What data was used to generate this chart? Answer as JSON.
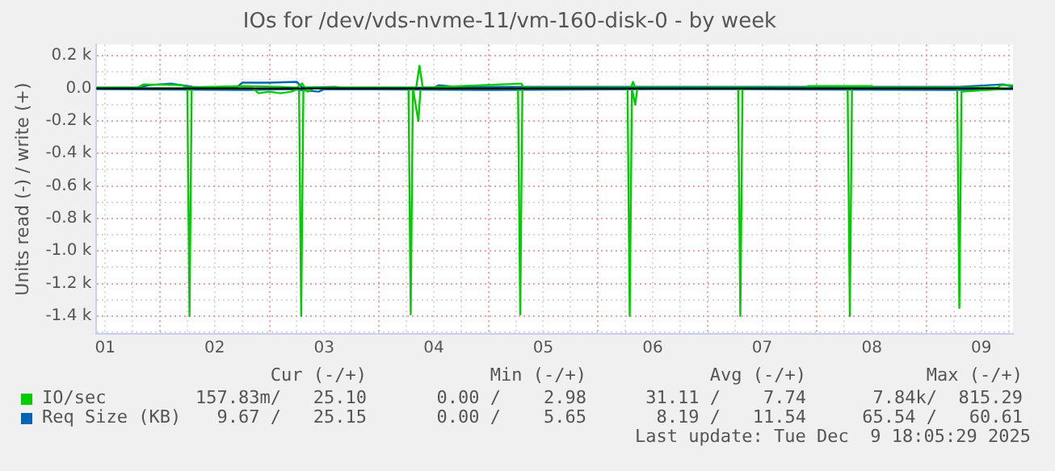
{
  "chart_data": {
    "type": "line",
    "title": "IOs for /dev/vds-nvme-11/vm-160-disk-0 - by week",
    "ylabel": "Units read (-) / write (+)",
    "xlim": [
      1.42,
      9.79
    ],
    "xticks": [
      {
        "value": 1.5,
        "label": "01"
      },
      {
        "value": 1.75,
        "label": null
      },
      {
        "value": 2,
        "label": null
      },
      {
        "value": 2.25,
        "label": null
      },
      {
        "value": 2.5,
        "label": "02"
      },
      {
        "value": 2.75,
        "label": null
      },
      {
        "value": 3,
        "label": null
      },
      {
        "value": 3.25,
        "label": null
      },
      {
        "value": 3.5,
        "label": "03"
      },
      {
        "value": 3.75,
        "label": null
      },
      {
        "value": 4,
        "label": null
      },
      {
        "value": 4.25,
        "label": null
      },
      {
        "value": 4.5,
        "label": "04"
      },
      {
        "value": 4.75,
        "label": null
      },
      {
        "value": 5,
        "label": null
      },
      {
        "value": 5.25,
        "label": null
      },
      {
        "value": 5.5,
        "label": "05"
      },
      {
        "value": 5.75,
        "label": null
      },
      {
        "value": 6,
        "label": null
      },
      {
        "value": 6.25,
        "label": null
      },
      {
        "value": 6.5,
        "label": "06"
      },
      {
        "value": 6.75,
        "label": null
      },
      {
        "value": 7,
        "label": null
      },
      {
        "value": 7.25,
        "label": null
      },
      {
        "value": 7.5,
        "label": "07"
      },
      {
        "value": 7.75,
        "label": null
      },
      {
        "value": 8,
        "label": null
      },
      {
        "value": 8.25,
        "label": null
      },
      {
        "value": 8.5,
        "label": "08"
      },
      {
        "value": 8.75,
        "label": null
      },
      {
        "value": 9,
        "label": null
      },
      {
        "value": 9.25,
        "label": null
      },
      {
        "value": 9.5,
        "label": "09"
      },
      {
        "value": 9.75,
        "label": null
      }
    ],
    "ylim": [
      -1510,
      270
    ],
    "yticks": [
      {
        "value": -1500,
        "label": null
      },
      {
        "value": -1400,
        "label": "-1.4 k"
      },
      {
        "value": -1300,
        "label": null
      },
      {
        "value": -1200,
        "label": "-1.2 k"
      },
      {
        "value": -1100,
        "label": null
      },
      {
        "value": -1000,
        "label": "-1.0 k"
      },
      {
        "value": -900,
        "label": null
      },
      {
        "value": -800,
        "label": "-0.8 k"
      },
      {
        "value": -700,
        "label": null
      },
      {
        "value": -600,
        "label": "-0.6 k"
      },
      {
        "value": -500,
        "label": null
      },
      {
        "value": -400,
        "label": "-0.4 k"
      },
      {
        "value": -300,
        "label": null
      },
      {
        "value": -200,
        "label": "-0.2 k"
      },
      {
        "value": -100,
        "label": null
      },
      {
        "value": 0,
        "label": "0.0"
      },
      {
        "value": 100,
        "label": null
      },
      {
        "value": 200,
        "label": "0.2 k"
      }
    ],
    "grid": true,
    "legend": "bottom",
    "marker": "none",
    "line_style": "solid",
    "ref_lines": [
      {
        "axis": "y",
        "value": 0,
        "color": "#000000"
      }
    ],
    "series": [
      {
        "name": "IO/sec",
        "color": "#00cc00",
        "x": [
          1.42,
          1.8,
          1.85,
          2.2,
          2.25,
          2.75,
          3.1,
          3.25,
          3.3,
          3.32,
          4.34,
          4.37,
          4.4,
          5.3,
          5.32,
          6.3,
          6.32,
          6.34,
          7.9,
          7.92,
          8.5,
          8.52,
          9.65,
          9.68,
          9.79
        ],
        "values": [
          5,
          5,
          25,
          20,
          5,
          15,
          10,
          5,
          30,
          5,
          5,
          140,
          5,
          30,
          5,
          5,
          40,
          5,
          5,
          15,
          15,
          5,
          5,
          20,
          20
        ]
      },
      {
        "color": "#00cc00",
        "x": [
          1.42,
          2.25,
          2.27,
          2.29,
          2.85,
          2.9,
          3.0,
          3.1,
          3.2,
          3.27,
          3.29,
          3.31,
          3.35,
          3.4,
          4.27,
          4.29,
          4.31,
          4.36,
          4.38,
          5.27,
          5.29,
          5.31,
          6.27,
          6.29,
          6.31,
          6.34,
          6.36,
          7.28,
          7.3,
          7.32,
          8.28,
          8.3,
          8.32,
          9.28,
          9.3,
          9.32,
          9.79
        ],
        "values": [
          0,
          0,
          -1400,
          0,
          0,
          -30,
          -20,
          -30,
          -20,
          0,
          -1400,
          0,
          -20,
          0,
          0,
          -1390,
          0,
          -200,
          0,
          0,
          -1390,
          0,
          0,
          -1400,
          0,
          -100,
          0,
          0,
          -1400,
          0,
          0,
          -1400,
          0,
          0,
          -1350,
          -20,
          0
        ]
      },
      {
        "name": "Req Size (KB)",
        "color": "#0066b3",
        "x": [
          1.42,
          1.8,
          1.9,
          2.1,
          2.3,
          2.7,
          2.75,
          3.0,
          3.25,
          3.3,
          3.6,
          3.65,
          4.5,
          4.55,
          4.7,
          5.3,
          6.3,
          7.3,
          8.3,
          9.3,
          9.7,
          9.79
        ],
        "values": [
          5,
          5,
          20,
          30,
          10,
          5,
          35,
          35,
          40,
          5,
          10,
          5,
          5,
          20,
          10,
          10,
          10,
          10,
          10,
          10,
          25,
          10
        ]
      },
      {
        "color": "#0066b3",
        "x": [
          1.42,
          2.8,
          3.2,
          3.45,
          3.5,
          5.0,
          6.5,
          7.3,
          9.3,
          9.79
        ],
        "values": [
          -5,
          -10,
          -5,
          -20,
          -5,
          -10,
          -5,
          -5,
          -10,
          -5
        ]
      }
    ],
    "annotations": [
      "Cur (-/+)",
      "Min (-/+)",
      "Avg (-/+)",
      "Max (-/+)",
      "157.83m/   25.10",
      "0.00 /    2.98",
      "31.11 /    7.74",
      "7.84k/  815.29",
      "9.67 /   25.15",
      "0.00 /    5.65",
      "8.19 /   11.54",
      "65.54 /   60.61",
      "Last update: Tue Dec  9 18:05:29 2025"
    ]
  }
}
